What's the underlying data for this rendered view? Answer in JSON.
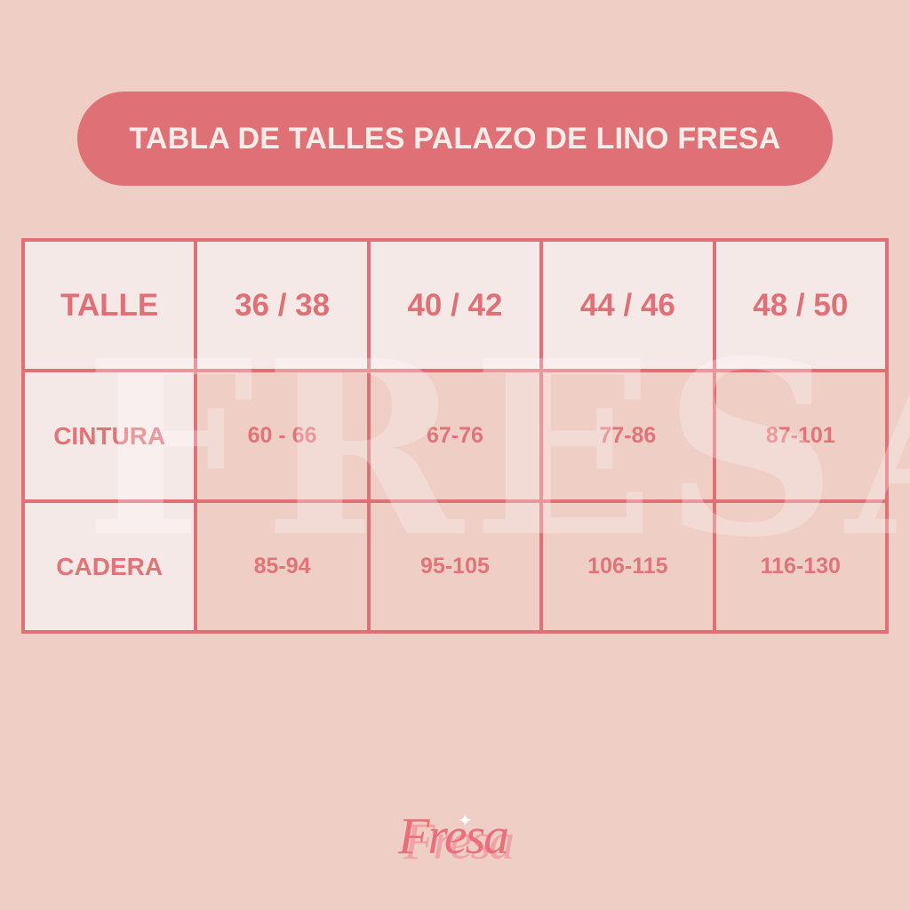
{
  "title": "TABLA DE TALLES PALAZO DE LINO FRESA",
  "watermark": "FRESA",
  "table": {
    "header": [
      "TALLE",
      "36 / 38",
      "40 / 42",
      "44 / 46",
      "48 / 50"
    ],
    "rows": [
      {
        "label": "CINTURA",
        "values": [
          "60 - 66",
          "67-76",
          "77-86",
          "87-101"
        ]
      },
      {
        "label": "CADERA",
        "values": [
          "85-94",
          "95-105",
          "106-115",
          "116-130"
        ]
      }
    ]
  },
  "logo": {
    "text": "Fresa",
    "icon": "sparkle-icon"
  },
  "colors": {
    "accent": "#df7076",
    "background": "#efcec5",
    "cell_light": "#f5e9e8"
  }
}
